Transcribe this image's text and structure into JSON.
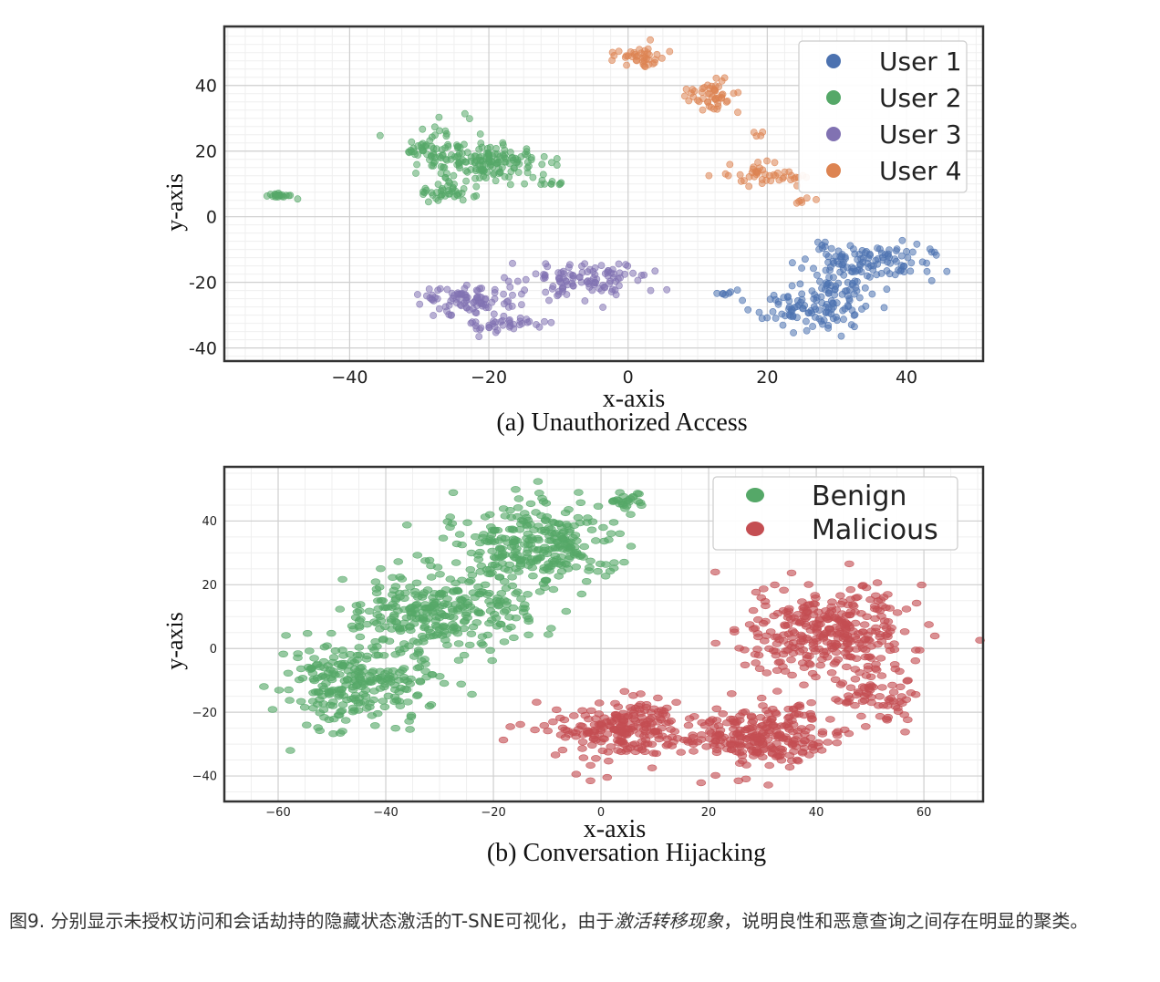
{
  "chart_data": [
    {
      "type": "scatter",
      "subtitle": "(a) Unauthorized Access",
      "xlabel": "x-axis",
      "ylabel": "y-axis",
      "xlim": [
        -58,
        51
      ],
      "ylim": [
        -44,
        58
      ],
      "xticks": [
        -40,
        -20,
        0,
        20,
        40
      ],
      "xtick_labels": [
        "−40",
        "−20",
        "0",
        "20",
        "40"
      ],
      "yticks": [
        40,
        20,
        0,
        -20,
        -40
      ],
      "ytick_labels": [
        "40",
        "20",
        "0",
        "-20",
        "-40"
      ],
      "grid": true,
      "legend_position": "top-right",
      "series": [
        {
          "name": "User 1",
          "color": "#4c72b0",
          "clusters": [
            {
              "cx": 34,
              "cy": -14,
              "rx": 8,
              "ry": 5,
              "n": 120
            },
            {
              "cx": 26,
              "cy": -28,
              "rx": 7,
              "ry": 6,
              "n": 100
            },
            {
              "cx": 31,
              "cy": -22,
              "rx": 4,
              "ry": 4,
              "n": 30
            },
            {
              "cx": 14,
              "cy": -23.5,
              "rx": 1,
              "ry": 0.6,
              "n": 6
            }
          ]
        },
        {
          "name": "User 2",
          "color": "#55a868",
          "clusters": [
            {
              "cx": -28,
              "cy": 20,
              "rx": 4,
              "ry": 6,
              "n": 60
            },
            {
              "cx": -20,
              "cy": 17,
              "rx": 7,
              "ry": 5,
              "n": 150
            },
            {
              "cx": -26,
              "cy": 8,
              "rx": 4,
              "ry": 3,
              "n": 40
            },
            {
              "cx": -11,
              "cy": 10,
              "rx": 2,
              "ry": 1,
              "n": 8
            },
            {
              "cx": -50,
              "cy": 6.5,
              "rx": 2,
              "ry": 1,
              "n": 20
            }
          ]
        },
        {
          "name": "User 3",
          "color": "#8172b2",
          "clusters": [
            {
              "cx": -23,
              "cy": -25,
              "rx": 7,
              "ry": 4,
              "n": 90
            },
            {
              "cx": -18,
              "cy": -33,
              "rx": 5,
              "ry": 2.5,
              "n": 40
            },
            {
              "cx": -6,
              "cy": -19,
              "rx": 8,
              "ry": 5,
              "n": 110
            }
          ]
        },
        {
          "name": "User 4",
          "color": "#dd8452",
          "clusters": [
            {
              "cx": 1,
              "cy": 49,
              "rx": 4,
              "ry": 3,
              "n": 40
            },
            {
              "cx": 12,
              "cy": 37,
              "rx": 4,
              "ry": 4,
              "n": 50
            },
            {
              "cx": 19,
              "cy": 13,
              "rx": 6,
              "ry": 3,
              "n": 45
            },
            {
              "cx": 18,
              "cy": 25,
              "rx": 1,
              "ry": 1,
              "n": 4
            },
            {
              "cx": 25,
              "cy": 5,
              "rx": 2,
              "ry": 0.6,
              "n": 6
            }
          ]
        }
      ],
      "legend": [
        "User 1",
        "User 2",
        "User 3",
        "User 4"
      ]
    },
    {
      "type": "scatter",
      "subtitle": "(b) Conversation Hijacking",
      "xlabel": "x-axis",
      "ylabel": "y-axis",
      "xlim": [
        -70,
        71
      ],
      "ylim": [
        -48,
        57
      ],
      "xticks": [
        -60,
        -40,
        -20,
        0,
        20,
        40,
        60
      ],
      "xtick_labels": [
        "−60",
        "−40",
        "−20",
        "0",
        "20",
        "40",
        "60"
      ],
      "yticks": [
        40,
        20,
        0,
        -20,
        -40
      ],
      "ytick_labels": [
        "40",
        "20",
        "0",
        "−20",
        "−40"
      ],
      "grid": true,
      "legend_position": "top-right",
      "series": [
        {
          "name": "Benign",
          "color": "#55a868",
          "clusters": [
            {
              "cx": -45,
              "cy": -10,
              "rx": 13,
              "ry": 12,
              "n": 260
            },
            {
              "cx": -30,
              "cy": 12,
              "rx": 14,
              "ry": 12,
              "n": 280
            },
            {
              "cx": -12,
              "cy": 32,
              "rx": 13,
              "ry": 12,
              "n": 280
            },
            {
              "cx": 5,
              "cy": 46,
              "rx": 4,
              "ry": 3,
              "n": 25
            }
          ]
        },
        {
          "name": "Malicious",
          "color": "#c44e52",
          "clusters": [
            {
              "cx": 5,
              "cy": -25,
              "rx": 13,
              "ry": 9,
              "n": 230
            },
            {
              "cx": 30,
              "cy": -28,
              "rx": 12,
              "ry": 9,
              "n": 250
            },
            {
              "cx": 42,
              "cy": 5,
              "rx": 14,
              "ry": 14,
              "n": 330
            },
            {
              "cx": 52,
              "cy": -15,
              "rx": 6,
              "ry": 8,
              "n": 60
            }
          ]
        }
      ],
      "legend": [
        "Benign",
        "Malicious"
      ]
    }
  ],
  "caption": {
    "prefix": "图9. 分别显示未授权访问和会话劫持的隐藏状态激活的T-SNE可视化，由于",
    "emphasis": "激活转移现象",
    "suffix": "，说明良性和恶意查询之间存在明显的聚类。"
  }
}
